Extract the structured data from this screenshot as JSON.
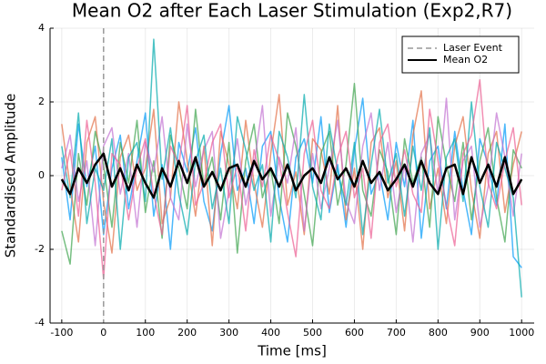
{
  "chart_data": {
    "type": "line",
    "title": "Mean O2 after Each Laser Stimulation (Exp2,R7)",
    "x_label": "Time [ms]",
    "y_label": "Standardised Amplitude",
    "x": [
      -100,
      -80,
      -60,
      -40,
      -20,
      0,
      20,
      40,
      60,
      80,
      100,
      120,
      140,
      160,
      180,
      200,
      220,
      240,
      260,
      280,
      300,
      320,
      340,
      360,
      380,
      400,
      420,
      440,
      460,
      480,
      500,
      520,
      540,
      560,
      580,
      600,
      620,
      640,
      660,
      680,
      700,
      720,
      740,
      760,
      780,
      800,
      820,
      840,
      860,
      880,
      900,
      920,
      940,
      960,
      980,
      1000
    ],
    "xlim": [
      -128,
      1030
    ],
    "xticks": [
      -100,
      0,
      100,
      200,
      300,
      400,
      500,
      600,
      700,
      800,
      900,
      1000
    ],
    "ylim": [
      -4,
      4
    ],
    "yticks": [
      -4,
      -2,
      0,
      2,
      4
    ],
    "grid": true,
    "legend": "top-right",
    "vlines": [
      {
        "name": "Laser Event",
        "x": 0,
        "color": "#999999"
      }
    ],
    "series": [
      {
        "name": "Mean O2",
        "color": "#000000",
        "values": [
          -0.1,
          -0.5,
          0.2,
          -0.2,
          0.3,
          0.6,
          -0.3,
          0.2,
          -0.4,
          0.3,
          -0.2,
          -0.6,
          0.2,
          -0.3,
          0.4,
          -0.2,
          0.5,
          -0.3,
          0.1,
          -0.4,
          0.2,
          0.3,
          -0.3,
          0.4,
          -0.1,
          0.2,
          -0.3,
          0.3,
          -0.4,
          0.0,
          0.2,
          -0.2,
          0.5,
          -0.1,
          0.2,
          -0.3,
          0.4,
          -0.2,
          0.1,
          -0.4,
          -0.1,
          0.3,
          -0.3,
          0.4,
          -0.2,
          -0.5,
          0.2,
          0.3,
          -0.5,
          0.5,
          -0.2,
          0.3,
          -0.3,
          0.5,
          -0.5,
          -0.1
        ]
      }
    ],
    "traces": [
      {
        "color": "#009af9",
        "values": [
          0.5,
          -1.2,
          1.4,
          -0.3,
          0.8,
          -1.6,
          0.2,
          1.1,
          -0.9,
          0.4,
          1.7,
          -1.1,
          0.3,
          -2.0,
          0.9,
          0.1,
          1.3,
          -0.7,
          -1.5,
          0.6,
          1.9,
          -0.4,
          0.2,
          -1.3,
          0.8,
          1.2,
          -0.6,
          -1.8,
          0.5,
          1.0,
          -0.2,
          1.6,
          -1.0,
          0.3,
          -1.4,
          0.7,
          2.1,
          -0.5,
          0.1,
          -1.2,
          0.9,
          -0.3,
          1.5,
          -1.7,
          0.4,
          0.8,
          -0.9,
          1.2,
          -0.4,
          -1.6,
          1.0,
          0.3,
          -0.8,
          1.4,
          -2.2,
          -2.5
        ]
      },
      {
        "color": "#e26f46",
        "values": [
          1.4,
          -0.3,
          -1.8,
          0.9,
          1.6,
          -0.7,
          -2.1,
          0.5,
          1.1,
          -0.4,
          0.2,
          1.8,
          -1.3,
          -0.6,
          2.0,
          0.4,
          -1.1,
          0.8,
          -1.9,
          1.2,
          0.3,
          -0.9,
          1.5,
          -0.2,
          -1.4,
          0.6,
          2.2,
          -0.8,
          0.1,
          -1.6,
          1.0,
          0.7,
          -0.5,
          1.9,
          -1.2,
          0.2,
          -2.0,
          0.9,
          1.3,
          -0.6,
          0.4,
          -1.5,
          1.1,
          2.3,
          -0.9,
          0.2,
          -1.3,
          0.8,
          1.6,
          -0.4,
          -1.7,
          0.6,
          1.2,
          -1.0,
          0.3,
          1.2
        ]
      },
      {
        "color": "#3da44d",
        "values": [
          -1.5,
          -2.4,
          0.6,
          -0.8,
          1.2,
          0.3,
          -1.4,
          0.9,
          -0.2,
          1.5,
          -1.0,
          0.4,
          -1.7,
          1.1,
          0.2,
          -0.9,
          1.8,
          -0.3,
          0.5,
          -1.2,
          0.9,
          -2.1,
          0.4,
          1.4,
          -0.6,
          0.2,
          -1.3,
          1.7,
          0.8,
          -0.5,
          -1.9,
          0.6,
          1.2,
          -0.8,
          0.3,
          2.5,
          -0.4,
          -1.1,
          0.7,
          0.1,
          -1.6,
          1.0,
          -0.2,
          0.5,
          -1.4,
          1.6,
          0.3,
          -0.7,
          0.9,
          -1.2,
          0.4,
          1.3,
          -0.6,
          -1.8,
          0.7,
          0.2
        ]
      },
      {
        "color": "#c271d2",
        "values": [
          0.2,
          1.1,
          -0.7,
          0.4,
          -1.9,
          0.8,
          1.3,
          -0.5,
          0.6,
          -1.4,
          0.9,
          0.1,
          1.6,
          -0.6,
          -1.2,
          1.4,
          -0.3,
          0.7,
          1.2,
          -1.7,
          -0.4,
          1.0,
          -0.8,
          0.3,
          1.9,
          -1.1,
          0.5,
          -0.2,
          1.3,
          -1.5,
          0.6,
          -0.9,
          0.2,
          1.5,
          -0.7,
          -1.3,
          0.8,
          1.7,
          -0.4,
          0.9,
          -1.0,
          0.3,
          -1.8,
          0.6,
          1.1,
          -0.5,
          2.1,
          -1.2,
          0.4,
          0.8,
          -1.4,
          -0.3,
          1.7,
          0.5,
          -1.1,
          0.6
        ]
      },
      {
        "color": "#00a9ad",
        "values": [
          0.8,
          -0.6,
          1.7,
          -1.3,
          0.2,
          -0.4,
          1.0,
          -2.0,
          0.5,
          0.9,
          -0.7,
          3.7,
          -0.1,
          1.3,
          -0.5,
          -1.6,
          0.4,
          1.1,
          -0.9,
          0.2,
          -1.3,
          1.6,
          0.7,
          -0.4,
          0.3,
          -1.8,
          1.2,
          0.5,
          -0.6,
          2.2,
          -0.3,
          -1.2,
          1.4,
          0.1,
          -0.8,
          0.9,
          -1.6,
          0.3,
          1.8,
          -0.2,
          0.6,
          -1.1,
          0.8,
          -0.4,
          1.3,
          -2.0,
          0.5,
          1.0,
          -0.7,
          2.0,
          -0.3,
          -1.4,
          0.9,
          0.2,
          -0.6,
          -3.3
        ]
      },
      {
        "color": "#ed5e93",
        "values": [
          -0.4,
          0.7,
          -1.1,
          1.5,
          -0.2,
          -2.8,
          0.6,
          0.3,
          -1.2,
          0.2,
          1.0,
          -0.5,
          -1.6,
          0.8,
          0.3,
          1.9,
          -0.8,
          -0.2,
          0.9,
          1.4,
          -0.6,
          0.3,
          -1.5,
          0.7,
          -0.3,
          1.1,
          0.4,
          -1.0,
          -2.2,
          0.6,
          1.5,
          -0.4,
          -0.9,
          0.5,
          1.2,
          -0.6,
          0.2,
          -1.7,
          0.9,
          1.4,
          -0.3,
          0.7,
          -0.5,
          -1.0,
          1.8,
          0.4,
          -0.8,
          -1.9,
          0.6,
          1.1,
          2.6,
          -0.2,
          -0.9,
          0.4,
          1.3,
          -0.8
        ]
      }
    ]
  }
}
